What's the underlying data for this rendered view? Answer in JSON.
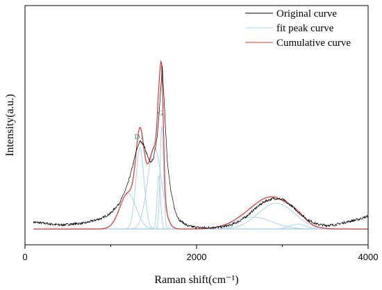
{
  "chart_data": {
    "type": "line",
    "title": "",
    "xlabel": "Raman shift(cm⁻¹)",
    "ylabel": "Intensity(a.u.)",
    "xlim": [
      0,
      4000
    ],
    "ylim": [
      -0.08,
      1.13
    ],
    "x_ticks": [
      0,
      2000,
      4000
    ],
    "x_tick_labels": [
      "0",
      "2000",
      "4000"
    ],
    "y_ticks_shown": false,
    "grid": false,
    "legend": {
      "position": "top-right",
      "entries": [
        {
          "label": "Original curve",
          "color": "#000000"
        },
        {
          "label": "fit peak curve",
          "color": "#a9d3f0"
        },
        {
          "label": "Cumulative curve",
          "color": "#e8302a"
        }
      ]
    },
    "peak_labels": [
      {
        "text": "D1",
        "x": 1330,
        "y": 0.455,
        "color": "#2a9d8f"
      },
      {
        "text": "G",
        "x": 1580,
        "y": 0.575,
        "color": "#2a9d8f"
      }
    ],
    "components": [
      {
        "center": 1200,
        "height": 0.18,
        "width": 95
      },
      {
        "center": 1340,
        "height": 0.41,
        "width": 48
      },
      {
        "center": 1510,
        "height": 0.41,
        "width": 80
      },
      {
        "center": 1595,
        "height": 0.52,
        "width": 20
      },
      {
        "center": 1560,
        "height": 0.27,
        "width": 20
      },
      {
        "center": 2660,
        "height": 0.06,
        "width": 220
      },
      {
        "center": 2930,
        "height": 0.13,
        "width": 210
      },
      {
        "center": 3180,
        "height": 0.025,
        "width": 90
      }
    ],
    "series": [
      {
        "name": "Original curve",
        "color": "#000000",
        "x": [
          100,
          400,
          700,
          900,
          1000,
          1100,
          1150,
          1200,
          1250,
          1300,
          1340,
          1380,
          1420,
          1460,
          1500,
          1540,
          1570,
          1600,
          1630,
          1660,
          1700,
          1750,
          1800,
          1900,
          2000,
          2100,
          2200,
          2300,
          2400,
          2500,
          2600,
          2700,
          2800,
          2900,
          3000,
          3100,
          3200,
          3300,
          3400,
          3500,
          3600,
          3700,
          3800,
          3900,
          4000
        ],
        "y": [
          0.035,
          0.02,
          0.03,
          0.055,
          0.08,
          0.13,
          0.175,
          0.23,
          0.31,
          0.4,
          0.445,
          0.43,
          0.38,
          0.335,
          0.36,
          0.46,
          0.62,
          0.82,
          0.58,
          0.34,
          0.19,
          0.09,
          0.045,
          0.015,
          0.008,
          0.006,
          0.008,
          0.01,
          0.02,
          0.04,
          0.07,
          0.11,
          0.14,
          0.155,
          0.15,
          0.12,
          0.08,
          0.045,
          0.025,
          0.018,
          0.02,
          0.03,
          0.04,
          0.05,
          0.065
        ]
      }
    ]
  }
}
